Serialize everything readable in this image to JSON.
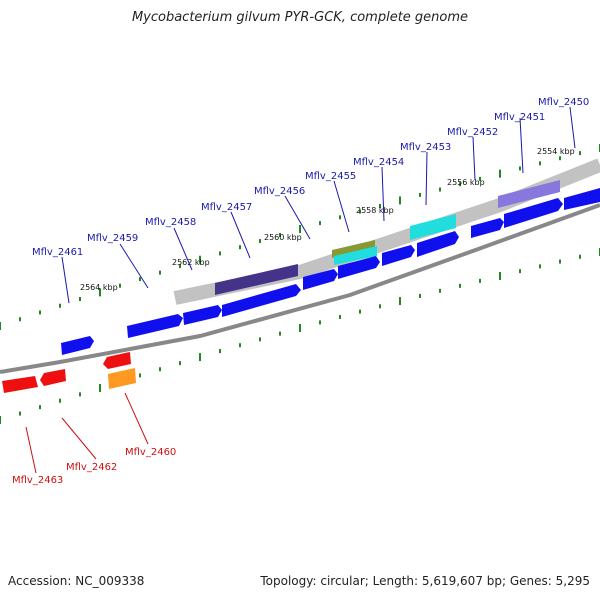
{
  "title": "Mycobacterium gilvum PYR-GCK, complete genome",
  "accession": "Accession: NC_009338",
  "summary": "Topology: circular; Length: 5,619,607 bp; Genes: 5,295",
  "kbp_labels": [
    "2554 kbp",
    "2556 kbp",
    "2558 kbp",
    "2560 kbp",
    "2562 kbp",
    "2564 kbp"
  ],
  "colors": {
    "forward_gene": "#1010ee",
    "reverse_gene": "#ee1010",
    "forward_label": "#1a1aaa",
    "reverse_label": "#cc1111",
    "tick": "#228822",
    "backbone": "#888888",
    "cyan_feature": "#22dddd",
    "olive_feature": "#889933",
    "orange_feature": "#ff9922",
    "purple_feature": "#8877dd",
    "grey_feature": "#bbbbbb",
    "dark_feature": "#443388"
  },
  "forward_genes": [
    "Mflv_2450",
    "Mflv_2451",
    "Mflv_2452",
    "Mflv_2453",
    "Mflv_2454",
    "Mflv_2455",
    "Mflv_2456",
    "Mflv_2457",
    "Mflv_2458",
    "Mflv_2459",
    "Mflv_2461"
  ],
  "reverse_genes": [
    "Mflv_2460",
    "Mflv_2462",
    "Mflv_2463"
  ]
}
